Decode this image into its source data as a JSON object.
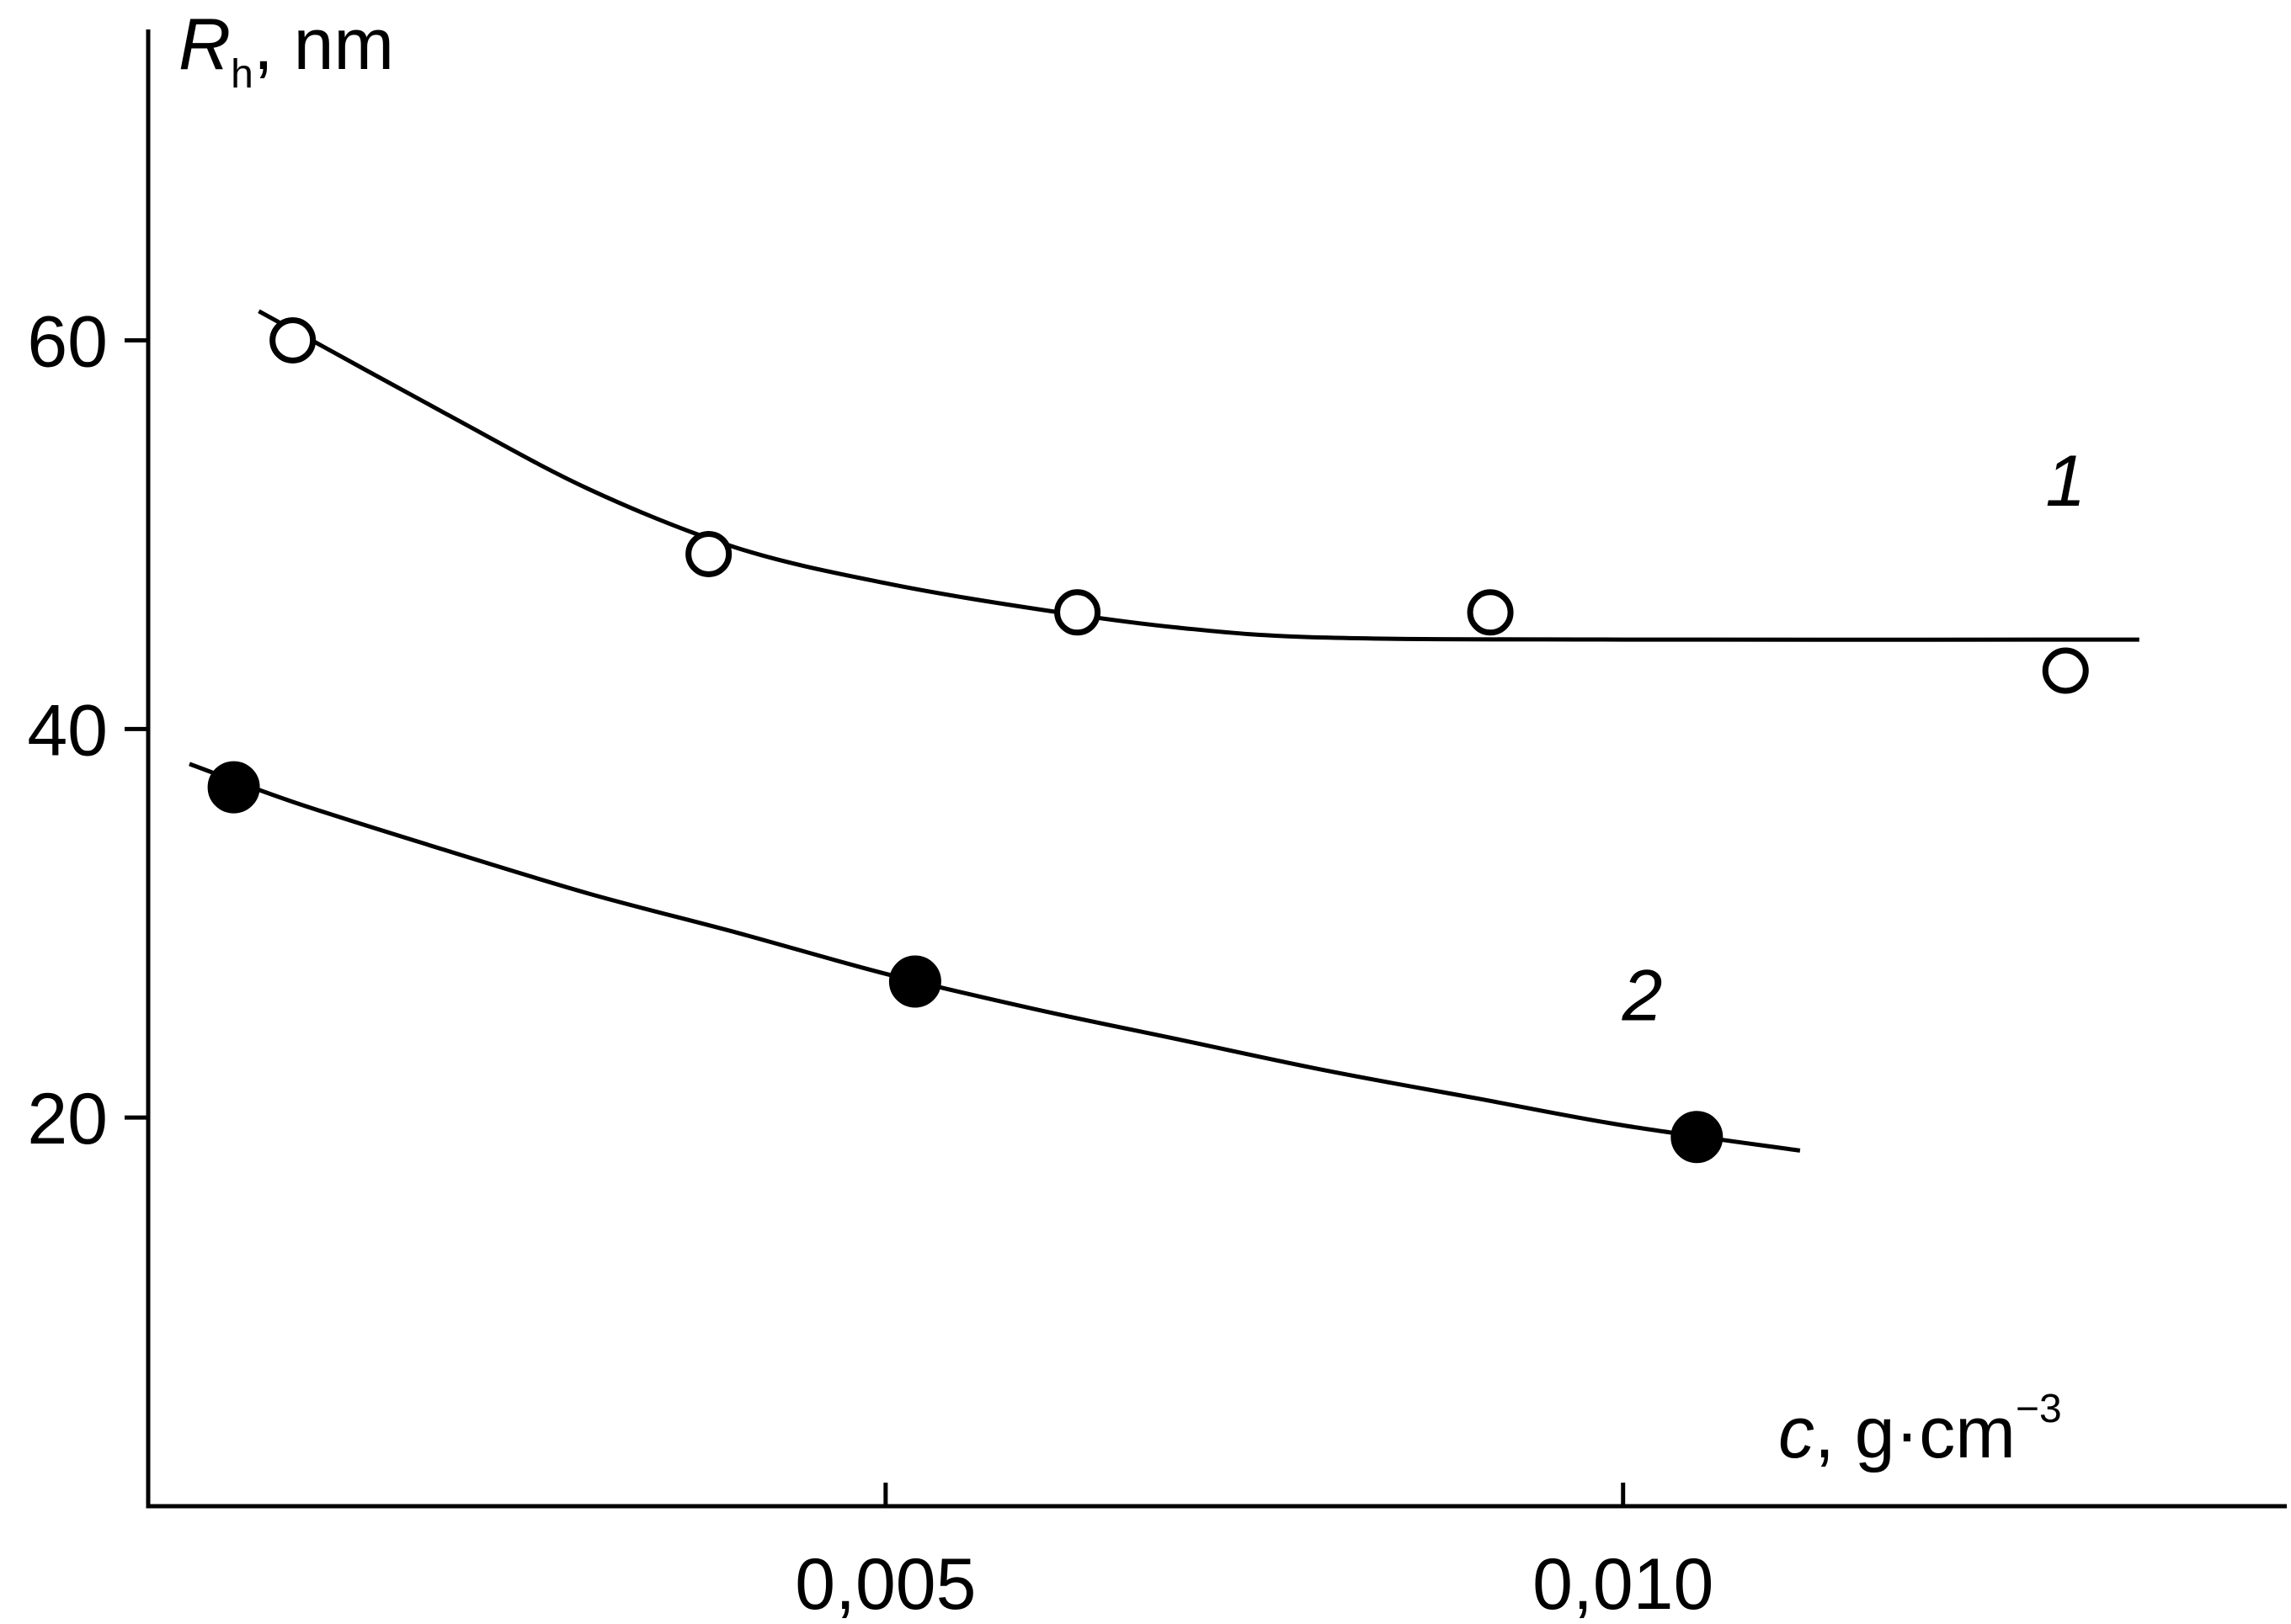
{
  "chart_data": {
    "type": "scatter",
    "title": "",
    "xlabel": {
      "var": "c",
      "unit": ", g·cm",
      "exp": "−3"
    },
    "ylabel": {
      "var": "R",
      "sub": "h",
      "unit": ", nm"
    },
    "xlim": [
      0.0,
      0.0145
    ],
    "ylim": [
      0,
      76
    ],
    "xticks": [
      {
        "value": 0.005,
        "label": "0,005"
      },
      {
        "value": 0.01,
        "label": "0,010"
      }
    ],
    "yticks": [
      {
        "value": 20,
        "label": "20"
      },
      {
        "value": 40,
        "label": "40"
      },
      {
        "value": 60,
        "label": "60"
      }
    ],
    "grid": false,
    "series": [
      {
        "name": "1",
        "marker": "open-circle",
        "points": [
          {
            "x": 0.00098,
            "y": 60
          },
          {
            "x": 0.0038,
            "y": 49
          },
          {
            "x": 0.0063,
            "y": 46
          },
          {
            "x": 0.0091,
            "y": 46
          },
          {
            "x": 0.013,
            "y": 43
          }
        ],
        "fit": [
          {
            "x": 0.00075,
            "y": 61.5
          },
          {
            "x": 0.002,
            "y": 56.3
          },
          {
            "x": 0.003,
            "y": 52.3
          },
          {
            "x": 0.004,
            "y": 49.3
          },
          {
            "x": 0.005,
            "y": 47.5
          },
          {
            "x": 0.006,
            "y": 46.2
          },
          {
            "x": 0.007,
            "y": 45.2
          },
          {
            "x": 0.008,
            "y": 44.7
          },
          {
            "x": 0.01,
            "y": 44.6
          },
          {
            "x": 0.0135,
            "y": 44.6
          }
        ]
      },
      {
        "name": "2",
        "marker": "filled-circle",
        "points": [
          {
            "x": 0.00058,
            "y": 37
          },
          {
            "x": 0.0052,
            "y": 27
          },
          {
            "x": 0.0105,
            "y": 19
          }
        ],
        "fit": [
          {
            "x": 0.00028,
            "y": 38.2
          },
          {
            "x": 0.001,
            "y": 36.2
          },
          {
            "x": 0.002,
            "y": 33.8
          },
          {
            "x": 0.003,
            "y": 31.5
          },
          {
            "x": 0.004,
            "y": 29.5
          },
          {
            "x": 0.005,
            "y": 27.4
          },
          {
            "x": 0.006,
            "y": 25.6
          },
          {
            "x": 0.007,
            "y": 24.0
          },
          {
            "x": 0.008,
            "y": 22.4
          },
          {
            "x": 0.009,
            "y": 21.0
          },
          {
            "x": 0.01,
            "y": 19.6
          },
          {
            "x": 0.0112,
            "y": 18.3
          }
        ]
      }
    ]
  }
}
